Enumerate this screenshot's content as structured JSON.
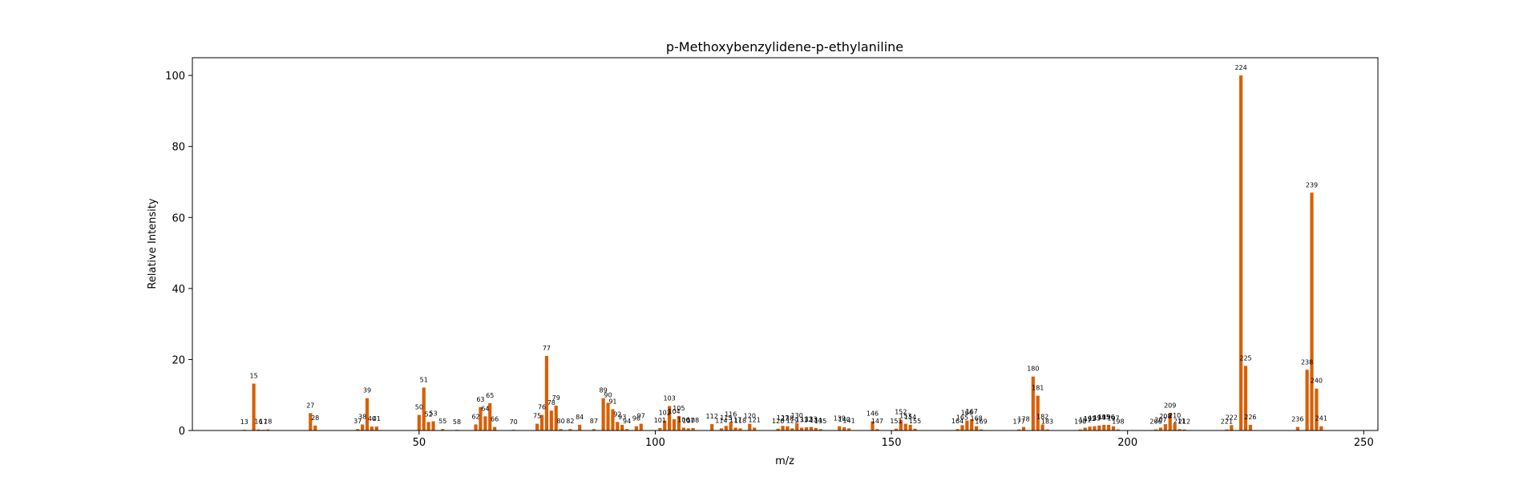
{
  "chart_data": {
    "type": "bar",
    "title": "p-Methoxybenzylidene-p-ethylaniline",
    "xlabel": "m/z",
    "ylabel": "Relative Intensity",
    "xlim": [
      2,
      253
    ],
    "ylim": [
      0,
      105
    ],
    "xticks": [
      50,
      100,
      150,
      200,
      250
    ],
    "yticks": [
      0,
      20,
      40,
      60,
      80,
      100
    ],
    "bar_color": "#d95f02",
    "grid": false,
    "legend": "none",
    "peaks": [
      {
        "x": 13,
        "y": 0.2,
        "label": "13"
      },
      {
        "x": 15,
        "y": 13.2,
        "label": "15"
      },
      {
        "x": 16,
        "y": 0.3,
        "label": "16"
      },
      {
        "x": 17,
        "y": 0.2,
        "label": "17"
      },
      {
        "x": 18,
        "y": 0.3,
        "label": "18"
      },
      {
        "x": 27,
        "y": 4.9,
        "label": "27"
      },
      {
        "x": 28,
        "y": 1.4,
        "label": "28"
      },
      {
        "x": 37,
        "y": 0.4,
        "label": "37"
      },
      {
        "x": 38,
        "y": 1.7,
        "label": "38"
      },
      {
        "x": 39,
        "y": 9.1,
        "label": "39"
      },
      {
        "x": 40,
        "y": 1.1,
        "label": "40"
      },
      {
        "x": 41,
        "y": 1.1,
        "label": "41"
      },
      {
        "x": 50,
        "y": 4.4,
        "label": "50"
      },
      {
        "x": 51,
        "y": 12.1,
        "label": "51"
      },
      {
        "x": 52,
        "y": 2.4,
        "label": "52"
      },
      {
        "x": 53,
        "y": 2.6,
        "label": "53"
      },
      {
        "x": 55,
        "y": 0.4,
        "label": "55"
      },
      {
        "x": 58,
        "y": 0.2,
        "label": "58"
      },
      {
        "x": 62,
        "y": 1.7,
        "label": "62"
      },
      {
        "x": 63,
        "y": 6.6,
        "label": "63"
      },
      {
        "x": 64,
        "y": 4.0,
        "label": "64"
      },
      {
        "x": 65,
        "y": 7.7,
        "label": "65"
      },
      {
        "x": 66,
        "y": 1.0,
        "label": "66"
      },
      {
        "x": 70,
        "y": 0.2,
        "label": "70"
      },
      {
        "x": 75,
        "y": 1.9,
        "label": "75"
      },
      {
        "x": 76,
        "y": 4.4,
        "label": "76"
      },
      {
        "x": 77,
        "y": 21.0,
        "label": "77"
      },
      {
        "x": 78,
        "y": 5.6,
        "label": "78"
      },
      {
        "x": 79,
        "y": 7.0,
        "label": "79"
      },
      {
        "x": 80,
        "y": 0.4,
        "label": "80"
      },
      {
        "x": 82,
        "y": 0.4,
        "label": "82"
      },
      {
        "x": 84,
        "y": 1.6,
        "label": "84"
      },
      {
        "x": 87,
        "y": 0.4,
        "label": "87"
      },
      {
        "x": 89,
        "y": 9.1,
        "label": "89"
      },
      {
        "x": 90,
        "y": 7.8,
        "label": "90"
      },
      {
        "x": 91,
        "y": 6.0,
        "label": "91"
      },
      {
        "x": 92,
        "y": 2.4,
        "label": "92"
      },
      {
        "x": 93,
        "y": 1.6,
        "label": "93"
      },
      {
        "x": 94,
        "y": 0.4,
        "label": "94"
      },
      {
        "x": 96,
        "y": 1.2,
        "label": "96"
      },
      {
        "x": 97,
        "y": 1.9,
        "label": "97"
      },
      {
        "x": 101,
        "y": 0.7,
        "label": "101"
      },
      {
        "x": 102,
        "y": 2.8,
        "label": "102"
      },
      {
        "x": 103,
        "y": 6.9,
        "label": "103"
      },
      {
        "x": 104,
        "y": 3.2,
        "label": "104"
      },
      {
        "x": 105,
        "y": 4.1,
        "label": "105"
      },
      {
        "x": 106,
        "y": 0.8,
        "label": "106"
      },
      {
        "x": 107,
        "y": 0.6,
        "label": "107"
      },
      {
        "x": 108,
        "y": 0.7,
        "label": "108"
      },
      {
        "x": 112,
        "y": 1.8,
        "label": "112"
      },
      {
        "x": 114,
        "y": 0.6,
        "label": "114"
      },
      {
        "x": 115,
        "y": 1.3,
        "label": "115"
      },
      {
        "x": 116,
        "y": 2.4,
        "label": "116"
      },
      {
        "x": 117,
        "y": 0.8,
        "label": "117"
      },
      {
        "x": 118,
        "y": 0.6,
        "label": "118"
      },
      {
        "x": 120,
        "y": 1.9,
        "label": "120"
      },
      {
        "x": 121,
        "y": 0.8,
        "label": "121"
      },
      {
        "x": 126,
        "y": 0.5,
        "label": "126"
      },
      {
        "x": 127,
        "y": 1.3,
        "label": "127"
      },
      {
        "x": 128,
        "y": 1.2,
        "label": "128"
      },
      {
        "x": 129,
        "y": 0.6,
        "label": "129"
      },
      {
        "x": 130,
        "y": 2.0,
        "label": "130"
      },
      {
        "x": 131,
        "y": 0.8,
        "label": "131"
      },
      {
        "x": 132,
        "y": 0.9,
        "label": "132"
      },
      {
        "x": 133,
        "y": 1.0,
        "label": "133"
      },
      {
        "x": 134,
        "y": 0.7,
        "label": "134"
      },
      {
        "x": 135,
        "y": 0.4,
        "label": "135"
      },
      {
        "x": 139,
        "y": 1.2,
        "label": "139"
      },
      {
        "x": 140,
        "y": 0.9,
        "label": "140"
      },
      {
        "x": 141,
        "y": 0.6,
        "label": "141"
      },
      {
        "x": 146,
        "y": 2.6,
        "label": "146"
      },
      {
        "x": 147,
        "y": 0.4,
        "label": "147"
      },
      {
        "x": 151,
        "y": 0.5,
        "label": "151"
      },
      {
        "x": 152,
        "y": 3.0,
        "label": "152"
      },
      {
        "x": 153,
        "y": 1.9,
        "label": "153"
      },
      {
        "x": 154,
        "y": 1.6,
        "label": "154"
      },
      {
        "x": 155,
        "y": 0.5,
        "label": "155"
      },
      {
        "x": 164,
        "y": 0.4,
        "label": "164"
      },
      {
        "x": 165,
        "y": 1.5,
        "label": "165"
      },
      {
        "x": 166,
        "y": 2.8,
        "label": "166"
      },
      {
        "x": 167,
        "y": 3.2,
        "label": "167"
      },
      {
        "x": 168,
        "y": 1.2,
        "label": "168"
      },
      {
        "x": 169,
        "y": 0.3,
        "label": "169"
      },
      {
        "x": 177,
        "y": 0.3,
        "label": "177"
      },
      {
        "x": 178,
        "y": 1.0,
        "label": "178"
      },
      {
        "x": 180,
        "y": 15.2,
        "label": "180"
      },
      {
        "x": 181,
        "y": 9.8,
        "label": "181"
      },
      {
        "x": 182,
        "y": 1.7,
        "label": "182"
      },
      {
        "x": 183,
        "y": 0.3,
        "label": "183"
      },
      {
        "x": 190,
        "y": 0.3,
        "label": "190"
      },
      {
        "x": 191,
        "y": 0.8,
        "label": "191"
      },
      {
        "x": 192,
        "y": 1.1,
        "label": "192"
      },
      {
        "x": 193,
        "y": 1.2,
        "label": "193"
      },
      {
        "x": 194,
        "y": 1.4,
        "label": "194"
      },
      {
        "x": 195,
        "y": 1.6,
        "label": "195"
      },
      {
        "x": 196,
        "y": 1.6,
        "label": "196"
      },
      {
        "x": 197,
        "y": 1.2,
        "label": "197"
      },
      {
        "x": 198,
        "y": 0.3,
        "label": "198"
      },
      {
        "x": 206,
        "y": 0.3,
        "label": "206"
      },
      {
        "x": 207,
        "y": 0.8,
        "label": "207"
      },
      {
        "x": 208,
        "y": 1.8,
        "label": "208"
      },
      {
        "x": 209,
        "y": 4.9,
        "label": "209"
      },
      {
        "x": 210,
        "y": 2.0,
        "label": "210"
      },
      {
        "x": 211,
        "y": 0.4,
        "label": "211"
      },
      {
        "x": 212,
        "y": 0.3,
        "label": "212"
      },
      {
        "x": 221,
        "y": 0.3,
        "label": "221"
      },
      {
        "x": 222,
        "y": 1.5,
        "label": "222"
      },
      {
        "x": 224,
        "y": 100.0,
        "label": "224"
      },
      {
        "x": 225,
        "y": 18.2,
        "label": "225"
      },
      {
        "x": 226,
        "y": 1.6,
        "label": "226"
      },
      {
        "x": 236,
        "y": 1.0,
        "label": "236"
      },
      {
        "x": 238,
        "y": 17.1,
        "label": "238"
      },
      {
        "x": 239,
        "y": 67.0,
        "label": "239"
      },
      {
        "x": 240,
        "y": 11.8,
        "label": "240"
      },
      {
        "x": 241,
        "y": 1.2,
        "label": "241"
      }
    ]
  }
}
